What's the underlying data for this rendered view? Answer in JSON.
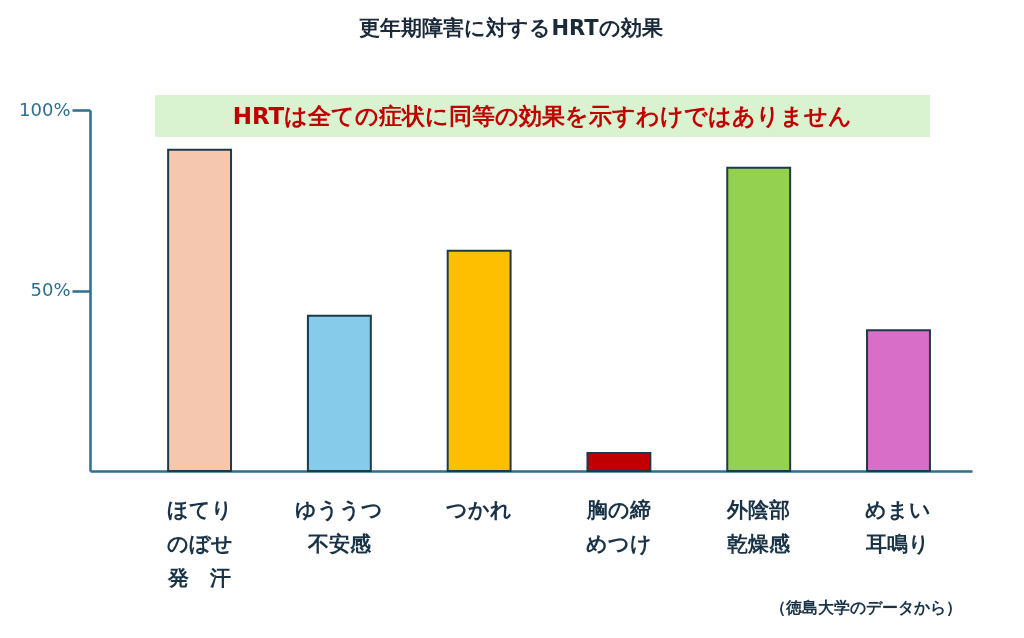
{
  "chart_data": {
    "type": "bar",
    "title": "更年期障害に対するHRTの効果",
    "categories": [
      "ほてりのぼせ発　汗",
      "ゆううつ不安感",
      "つかれ",
      "胸の締めつけ",
      "外陰部乾燥感",
      "めまい耳鳴り"
    ],
    "values": [
      89,
      43,
      61,
      5,
      84,
      39
    ],
    "colors": [
      "#f4c7ae",
      "#86cbea",
      "#fdbf00",
      "#c00000",
      "#95d151",
      "#d86ec8"
    ],
    "ylim": [
      0,
      100
    ],
    "yticks": [
      {
        "value": 50,
        "label": "50%"
      },
      {
        "value": 100,
        "label": "100%"
      }
    ],
    "grid": false,
    "annotations": [
      "HRTは全ての症状に同等の効果を示すわけではありません",
      "（徳島大学のデータから）"
    ]
  }
}
